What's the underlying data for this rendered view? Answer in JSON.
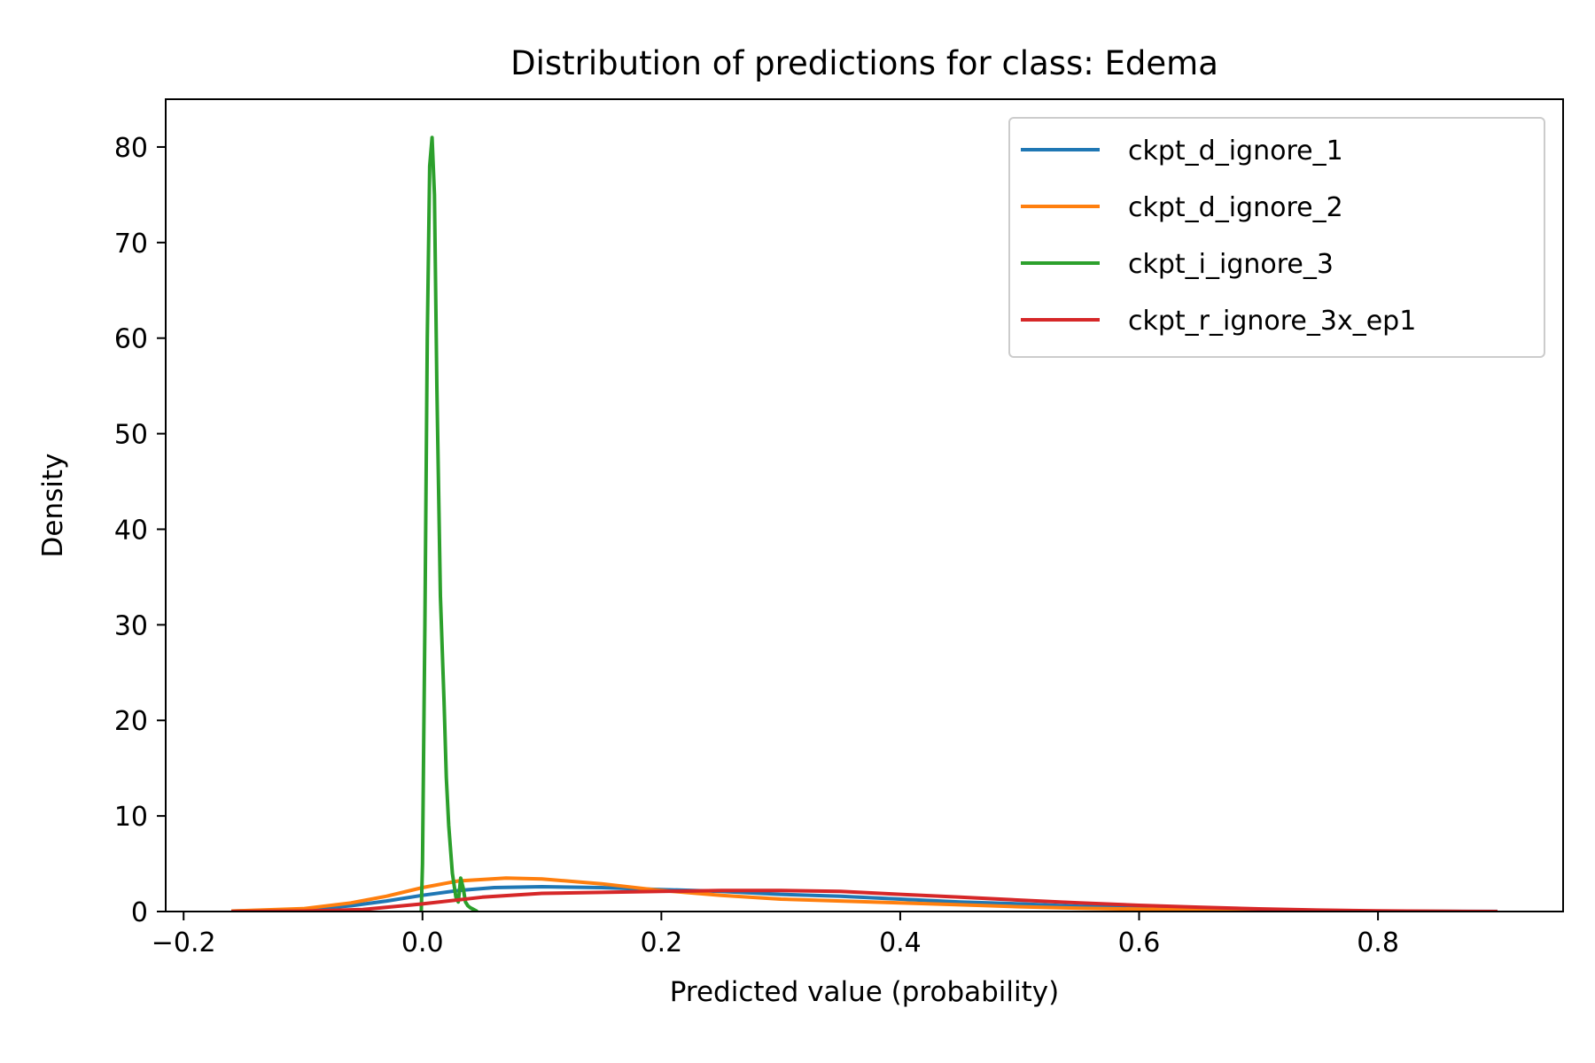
{
  "chart_data": {
    "type": "line",
    "title": "Distribution of predictions for class: Edema",
    "xlabel": "Predicted value (probability)",
    "ylabel": "Density",
    "xlim": [
      -0.215,
      0.955
    ],
    "ylim": [
      0,
      85
    ],
    "xticks": [
      -0.2,
      0.0,
      0.2,
      0.4,
      0.6,
      0.8
    ],
    "xtick_labels": [
      "−0.2",
      "0.0",
      "0.2",
      "0.4",
      "0.6",
      "0.8"
    ],
    "yticks": [
      0,
      10,
      20,
      30,
      40,
      50,
      60,
      70,
      80
    ],
    "ytick_labels": [
      "0",
      "10",
      "20",
      "30",
      "40",
      "50",
      "60",
      "70",
      "80"
    ],
    "grid": false,
    "legend_position": "top-right",
    "series": [
      {
        "name": "ckpt_d_ignore_1",
        "color": "#1f77b4",
        "x": [
          -0.16,
          -0.1,
          -0.06,
          -0.03,
          0.0,
          0.03,
          0.06,
          0.1,
          0.15,
          0.2,
          0.25,
          0.3,
          0.35,
          0.4,
          0.45,
          0.5,
          0.55,
          0.6,
          0.65,
          0.7,
          0.75,
          0.8,
          0.85,
          0.9
        ],
        "y": [
          0.05,
          0.2,
          0.6,
          1.1,
          1.7,
          2.2,
          2.5,
          2.6,
          2.5,
          2.3,
          2.1,
          1.8,
          1.6,
          1.3,
          1.0,
          0.8,
          0.55,
          0.38,
          0.25,
          0.15,
          0.08,
          0.04,
          0.02,
          0.01
        ]
      },
      {
        "name": "ckpt_d_ignore_2",
        "color": "#ff7f0e",
        "x": [
          -0.16,
          -0.1,
          -0.06,
          -0.03,
          0.0,
          0.03,
          0.07,
          0.1,
          0.15,
          0.2,
          0.25,
          0.3,
          0.35,
          0.4,
          0.45,
          0.5,
          0.55,
          0.6,
          0.65,
          0.7,
          0.75,
          0.8,
          0.85,
          0.9
        ],
        "y": [
          0.05,
          0.3,
          0.9,
          1.6,
          2.5,
          3.2,
          3.5,
          3.4,
          2.9,
          2.2,
          1.7,
          1.3,
          1.1,
          0.9,
          0.7,
          0.5,
          0.35,
          0.25,
          0.15,
          0.08,
          0.04,
          0.02,
          0.01,
          0.0
        ]
      },
      {
        "name": "ckpt_i_ignore_3",
        "color": "#2ca02c",
        "x": [
          -0.001,
          0.0,
          0.002,
          0.004,
          0.006,
          0.008,
          0.01,
          0.012,
          0.015,
          0.018,
          0.02,
          0.022,
          0.025,
          0.028,
          0.03,
          0.032,
          0.034,
          0.036,
          0.038,
          0.04,
          0.043,
          0.046
        ],
        "y": [
          0.0,
          5.0,
          30.0,
          60.0,
          78.0,
          81.0,
          75.0,
          55.0,
          33.0,
          22.0,
          14.0,
          9.0,
          4.0,
          1.5,
          1.0,
          3.5,
          2.5,
          1.0,
          0.6,
          0.4,
          0.2,
          0.0
        ]
      },
      {
        "name": "ckpt_r_ignore_3x_ep1",
        "color": "#d62728",
        "x": [
          -0.16,
          -0.1,
          -0.05,
          0.0,
          0.05,
          0.1,
          0.15,
          0.2,
          0.25,
          0.3,
          0.35,
          0.4,
          0.45,
          0.5,
          0.55,
          0.6,
          0.65,
          0.7,
          0.75,
          0.8,
          0.85,
          0.9
        ],
        "y": [
          0.0,
          0.05,
          0.2,
          0.8,
          1.5,
          1.9,
          2.0,
          2.1,
          2.2,
          2.2,
          2.1,
          1.8,
          1.5,
          1.2,
          0.9,
          0.65,
          0.45,
          0.28,
          0.15,
          0.07,
          0.03,
          0.0
        ]
      }
    ]
  }
}
